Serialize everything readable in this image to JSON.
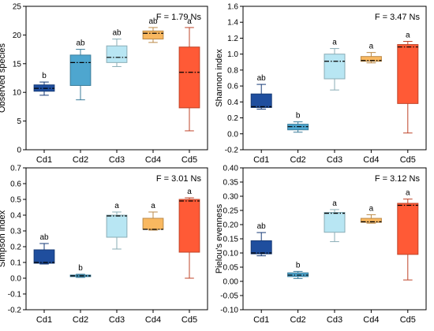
{
  "colors": [
    "#1f4e9e",
    "#4ea6cf",
    "#b8e6f3",
    "#f9b860",
    "#ff5a36"
  ],
  "chart_data": [
    {
      "type": "box",
      "ylabel": "Observed species",
      "stat": "F = 1.79 Ns",
      "ylim": [
        0,
        25
      ],
      "yticks": [
        0,
        5,
        10,
        15,
        20,
        25
      ],
      "categories": [
        "Cd1",
        "Cd2",
        "Cd3",
        "Cd4",
        "Cd5"
      ],
      "boxes": [
        {
          "min": 9.5,
          "q1": 10.2,
          "median": 10.7,
          "q3": 11.3,
          "max": 11.8,
          "sig": "b"
        },
        {
          "min": 8.7,
          "q1": 11.2,
          "median": 15.2,
          "q3": 16.5,
          "max": 17.5,
          "sig": "ab"
        },
        {
          "min": 14.5,
          "q1": 15.2,
          "median": 16.1,
          "q3": 18.1,
          "max": 19.3,
          "sig": "ab"
        },
        {
          "min": 18.7,
          "q1": 19.3,
          "median": 20.3,
          "q3": 20.7,
          "max": 21.3,
          "sig": "ab"
        },
        {
          "min": 3.3,
          "q1": 7.3,
          "median": 13.5,
          "q3": 17.9,
          "max": 21.3,
          "sig": "a"
        }
      ]
    },
    {
      "type": "box",
      "ylabel": "Shannon index",
      "stat": "F = 3.47 Ns",
      "ylim": [
        -0.2,
        1.6
      ],
      "yticks": [
        -0.2,
        0.0,
        0.2,
        0.4,
        0.6,
        0.8,
        1.0,
        1.2,
        1.4,
        1.6
      ],
      "categories": [
        "Cd1",
        "Cd2",
        "Cd3",
        "Cd4",
        "Cd5"
      ],
      "boxes": [
        {
          "min": 0.31,
          "q1": 0.33,
          "median": 0.34,
          "q3": 0.5,
          "max": 0.62,
          "sig": "ab"
        },
        {
          "min": 0.02,
          "q1": 0.05,
          "median": 0.09,
          "q3": 0.12,
          "max": 0.15,
          "sig": "b"
        },
        {
          "min": 0.55,
          "q1": 0.69,
          "median": 0.91,
          "q3": 1.0,
          "max": 1.07,
          "sig": "a"
        },
        {
          "min": 0.89,
          "q1": 0.91,
          "median": 0.92,
          "q3": 0.97,
          "max": 1.02,
          "sig": "a"
        },
        {
          "min": 0.01,
          "q1": 0.38,
          "median": 1.09,
          "q3": 1.12,
          "max": 1.16,
          "sig": "a"
        }
      ]
    },
    {
      "type": "box",
      "ylabel": "Simpson index",
      "stat": "F = 3.01 Ns",
      "ylim": [
        -0.2,
        0.7
      ],
      "yticks": [
        -0.2,
        -0.1,
        0.0,
        0.1,
        0.2,
        0.3,
        0.4,
        0.5,
        0.6,
        0.7
      ],
      "categories": [
        "Cd1",
        "Cd2",
        "Cd3",
        "Cd4",
        "Cd5"
      ],
      "boxes": [
        {
          "min": 0.09,
          "q1": 0.095,
          "median": 0.1,
          "q3": 0.18,
          "max": 0.22,
          "sig": "ab"
        },
        {
          "min": 0.005,
          "q1": 0.01,
          "median": 0.015,
          "q3": 0.02,
          "max": 0.025,
          "sig": "b"
        },
        {
          "min": 0.185,
          "q1": 0.26,
          "median": 0.395,
          "q3": 0.4,
          "max": 0.42,
          "sig": "a"
        },
        {
          "min": 0.305,
          "q1": 0.31,
          "median": 0.31,
          "q3": 0.38,
          "max": 0.42,
          "sig": "a"
        },
        {
          "min": 0.0,
          "q1": 0.165,
          "median": 0.49,
          "q3": 0.5,
          "max": 0.51,
          "sig": "a"
        }
      ]
    },
    {
      "type": "box",
      "ylabel": "Pielou's evenness",
      "stat": "F = 3.12 Ns",
      "ylim": [
        -0.1,
        0.4
      ],
      "yticks": [
        -0.1,
        -0.05,
        0.0,
        0.05,
        0.1,
        0.15,
        0.2,
        0.25,
        0.3,
        0.35,
        0.4
      ],
      "categories": [
        "Cd1",
        "Cd2",
        "Cd3",
        "Cd4",
        "Cd5"
      ],
      "boxes": [
        {
          "min": 0.09,
          "q1": 0.097,
          "median": 0.1,
          "q3": 0.143,
          "max": 0.172,
          "sig": "ab"
        },
        {
          "min": 0.01,
          "q1": 0.017,
          "median": 0.022,
          "q3": 0.03,
          "max": 0.035,
          "sig": "b"
        },
        {
          "min": 0.14,
          "q1": 0.173,
          "median": 0.24,
          "q3": 0.243,
          "max": 0.253,
          "sig": "a"
        },
        {
          "min": 0.205,
          "q1": 0.208,
          "median": 0.21,
          "q3": 0.222,
          "max": 0.235,
          "sig": "a"
        },
        {
          "min": 0.005,
          "q1": 0.095,
          "median": 0.268,
          "q3": 0.275,
          "max": 0.29,
          "sig": "a"
        }
      ]
    }
  ]
}
